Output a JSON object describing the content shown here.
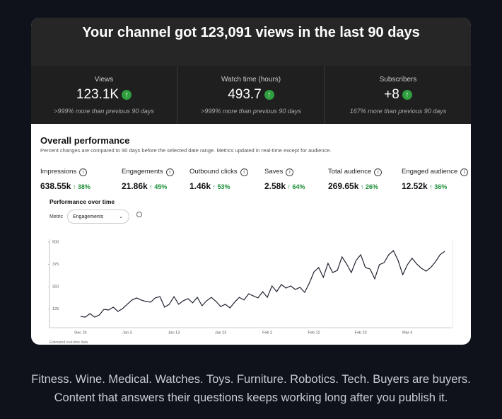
{
  "header": {
    "title": "Your channel got 123,091 views in the last 90 days"
  },
  "stats": [
    {
      "label": "Views",
      "value": "123.1K",
      "note": ">999% more than previous 90 days"
    },
    {
      "label": "Watch time (hours)",
      "value": "493.7",
      "note": ">999% more than previous 90 days"
    },
    {
      "label": "Subscribers",
      "value": "+8",
      "note": "167% more than previous 90 days"
    }
  ],
  "performance": {
    "title": "Overall performance",
    "subtitle": "Percent changes are compared to 90 days before the selected date range. Metrics updated in real-time except for audience.",
    "metrics": [
      {
        "label": "Impressions",
        "value": "638.55k",
        "change": "38%"
      },
      {
        "label": "Engagements",
        "value": "21.86k",
        "change": "45%"
      },
      {
        "label": "Outbound clicks",
        "value": "1.46k",
        "change": "53%"
      },
      {
        "label": "Saves",
        "value": "2.58k",
        "change": "64%"
      },
      {
        "label": "Total audience",
        "value": "269.65k",
        "change": "26%"
      },
      {
        "label": "Engaged audience",
        "value": "12.52k",
        "change": "36%"
      }
    ],
    "chart_title": "Performance over time",
    "metric_label": "Metric",
    "metric_selected": "Engagements",
    "footnote": "Estimated real-time data"
  },
  "chart_data": {
    "type": "line",
    "color": "#1f2330",
    "categories": [
      "Dec 24",
      null,
      null,
      null,
      null,
      null,
      null,
      null,
      null,
      null,
      "Jan 3",
      null,
      null,
      null,
      null,
      null,
      null,
      null,
      null,
      null,
      "Jan 13",
      null,
      null,
      null,
      null,
      null,
      null,
      null,
      null,
      null,
      "Jan 23",
      null,
      null,
      null,
      null,
      null,
      null,
      null,
      null,
      null,
      "Feb 2",
      null,
      null,
      null,
      null,
      null,
      null,
      null,
      null,
      null,
      "Feb 12",
      null,
      null,
      null,
      null,
      null,
      null,
      null,
      null,
      null,
      "Feb 22",
      null,
      null,
      null,
      null,
      null,
      null,
      null,
      null,
      null,
      "Mar 4",
      null,
      null,
      null,
      null,
      null,
      null,
      null,
      null
    ],
    "values": [
      83,
      79,
      99,
      79,
      91,
      123,
      119,
      135,
      111,
      127,
      151,
      175,
      187,
      175,
      167,
      163,
      187,
      194,
      135,
      151,
      194,
      151,
      171,
      183,
      159,
      190,
      143,
      171,
      190,
      167,
      139,
      151,
      131,
      163,
      190,
      175,
      210,
      198,
      187,
      222,
      190,
      254,
      222,
      262,
      242,
      254,
      234,
      246,
      218,
      270,
      333,
      357,
      302,
      381,
      329,
      341,
      417,
      377,
      329,
      397,
      429,
      357,
      349,
      294,
      373,
      385,
      429,
      452,
      397,
      317,
      373,
      409,
      377,
      353,
      337,
      357,
      389,
      429,
      448
    ],
    "ylim": [
      0,
      500
    ],
    "yticks": [
      125,
      250,
      375,
      500
    ]
  },
  "caption": [
    "Fitness. Wine. Medical. Watches. Toys. Furniture. Robotics. Tech. Buyers are buyers.",
    "Content that answers their questions keeps working long after you publish it."
  ]
}
